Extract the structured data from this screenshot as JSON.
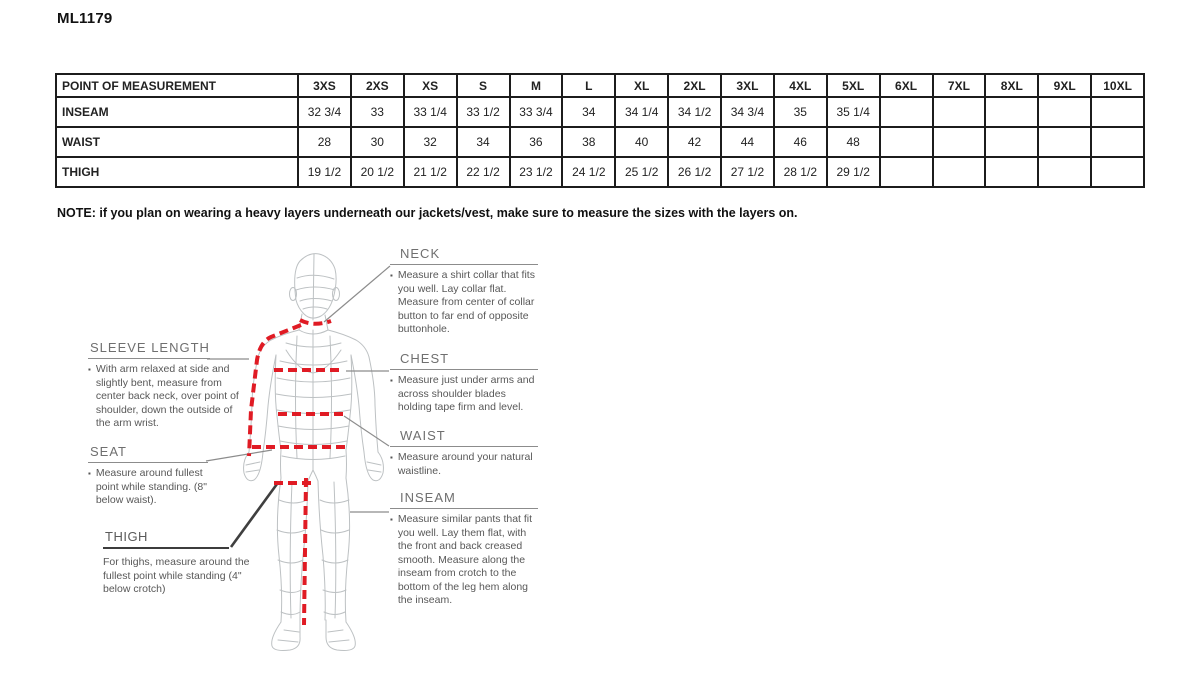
{
  "page": {
    "title": "ML1179"
  },
  "size_table": {
    "columns": [
      "POINT OF MEASUREMENT",
      "3XS",
      "2XS",
      "XS",
      "S",
      "M",
      "L",
      "XL",
      "2XL",
      "3XL",
      "4XL",
      "5XL",
      "6XL",
      "7XL",
      "8XL",
      "9XL",
      "10XL"
    ],
    "rows": [
      {
        "label": "INSEAM",
        "values": [
          "32 3/4",
          "33",
          "33 1/4",
          "33 1/2",
          "33 3/4",
          "34",
          "34 1/4",
          "34 1/2",
          "34 3/4",
          "35",
          "35 1/4",
          "",
          "",
          "",
          "",
          ""
        ]
      },
      {
        "label": "WAIST",
        "values": [
          "28",
          "30",
          "32",
          "34",
          "36",
          "38",
          "40",
          "42",
          "44",
          "46",
          "48",
          "",
          "",
          "",
          "",
          ""
        ]
      },
      {
        "label": "THIGH",
        "values": [
          "19 1/2",
          "20 1/2",
          "21 1/2",
          "22 1/2",
          "23 1/2",
          "24 1/2",
          "25 1/2",
          "26 1/2",
          "27 1/2",
          "28 1/2",
          "29 1/2",
          "",
          "",
          "",
          "",
          ""
        ]
      }
    ]
  },
  "note": "NOTE: if you plan on wearing a heavy layers underneath our jackets/vest, make sure to measure the sizes with the layers on.",
  "diagram": {
    "bullet_char": "▪",
    "sections": {
      "neck": {
        "heading": "NECK",
        "body": "Measure a shirt collar that fits you well. Lay collar flat. Measure from center of collar button to far end of opposite buttonhole."
      },
      "chest": {
        "heading": "CHEST",
        "body": "Measure just under arms and across shoulder blades holding tape firm and level."
      },
      "waist": {
        "heading": "WAIST",
        "body": "Measure around your natural waistline."
      },
      "inseam": {
        "heading": "INSEAM",
        "body": "Measure similar pants that fit you well. Lay them flat, with the front and back creased smooth. Measure along the inseam from crotch to the bottom of the leg hem along the inseam."
      },
      "sleeve_length": {
        "heading": "SLEEVE LENGTH",
        "body": "With arm relaxed at side and slightly bent, measure from center back neck, over point of shoulder, down the outside of the arm wrist."
      },
      "seat": {
        "heading": "SEAT",
        "body": "Measure around fullest point while standing. (8\" below waist)."
      },
      "thigh": {
        "heading": "THIGH",
        "body": "For thighs, measure around the fullest point while standing (4\" below crotch)"
      }
    },
    "colors": {
      "measure_line_red": "#e01b24",
      "figure_wireframe_gray": "#bdc1c3",
      "leader_line_gray": "#8c8c8c",
      "heading_gray": "#6f6f6f"
    }
  }
}
